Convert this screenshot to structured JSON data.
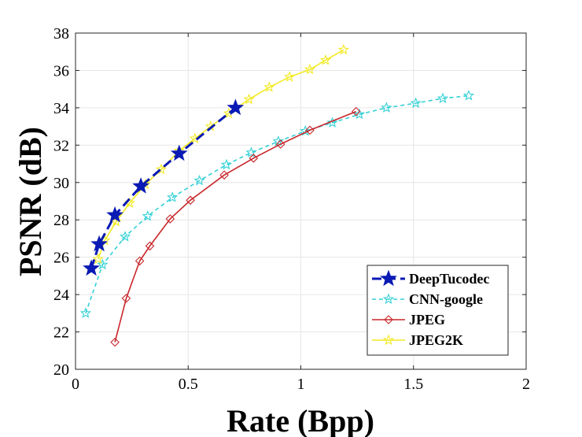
{
  "chart_data": {
    "type": "line",
    "title": "",
    "xlabel": "Rate (Bpp)",
    "ylabel": "PSNR (dB)",
    "xlim": [
      0,
      2
    ],
    "ylim": [
      20,
      38
    ],
    "xticks": [
      0,
      0.5,
      1,
      1.5,
      2
    ],
    "xtick_labels": [
      "0",
      "0.5",
      "1",
      "1.5",
      "2"
    ],
    "yticks": [
      20,
      22,
      24,
      26,
      28,
      30,
      32,
      34,
      36,
      38
    ],
    "ytick_labels": [
      "20",
      "22",
      "24",
      "26",
      "28",
      "30",
      "32",
      "34",
      "36",
      "38"
    ],
    "grid": true,
    "legend_position": "bottom-right",
    "series": [
      {
        "name": "DeepTucodec",
        "color": "#0a1ab4",
        "line_style": "dashed",
        "marker": "star-filled",
        "x": [
          0.07,
          0.105,
          0.175,
          0.29,
          0.46,
          0.71
        ],
        "y": [
          25.4,
          26.7,
          28.25,
          29.8,
          31.55,
          34.0
        ]
      },
      {
        "name": "CNN-google",
        "color": "#33d1d6",
        "line_style": "dashed",
        "marker": "star-open",
        "x": [
          0.045,
          0.12,
          0.22,
          0.32,
          0.43,
          0.55,
          0.67,
          0.78,
          0.9,
          1.02,
          1.14,
          1.26,
          1.38,
          1.51,
          1.63,
          1.745
        ],
        "y": [
          23.0,
          25.6,
          27.1,
          28.2,
          29.2,
          30.1,
          30.95,
          31.6,
          32.2,
          32.75,
          33.2,
          33.65,
          34.0,
          34.25,
          34.5,
          34.65
        ]
      },
      {
        "name": "JPEG",
        "color": "#c8262a",
        "line_style": "solid",
        "marker": "diamond-open",
        "x": [
          0.175,
          0.225,
          0.285,
          0.33,
          0.42,
          0.51,
          0.66,
          0.79,
          0.91,
          1.04,
          1.245
        ],
        "y": [
          21.45,
          23.8,
          25.8,
          26.6,
          28.05,
          29.05,
          30.4,
          31.3,
          32.05,
          32.8,
          33.8
        ]
      },
      {
        "name": "JPEG2K",
        "color": "#f2ea22",
        "line_style": "solid",
        "marker": "star-open",
        "x": [
          0.1,
          0.13,
          0.18,
          0.24,
          0.31,
          0.38,
          0.46,
          0.53,
          0.6,
          0.68,
          0.77,
          0.86,
          0.95,
          1.04,
          1.11,
          1.19
        ],
        "y": [
          25.9,
          26.9,
          27.9,
          28.9,
          29.9,
          30.7,
          31.7,
          32.35,
          33.0,
          33.7,
          34.45,
          35.1,
          35.65,
          36.05,
          36.55,
          37.1
        ]
      }
    ]
  }
}
